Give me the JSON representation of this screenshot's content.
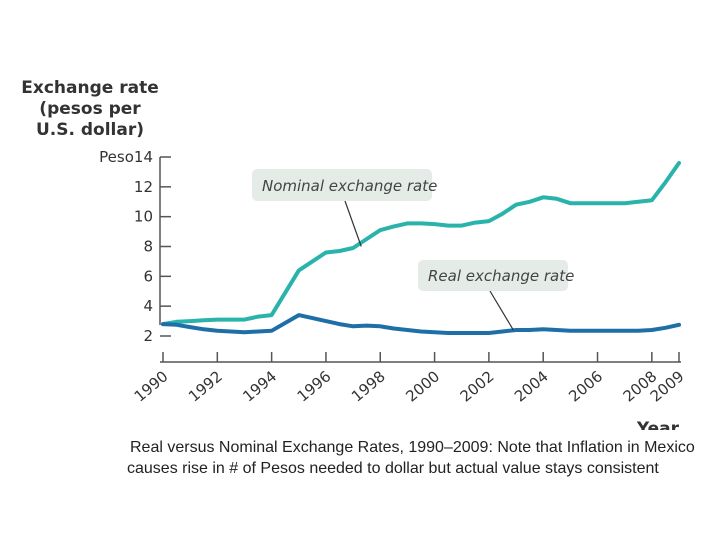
{
  "caption": "Real versus Nominal Exchange Rates, 1990–2009: Note that Inflation in Mexico causes rise in # of Pesos needed to dollar but actual value stays consistent",
  "chart_data": {
    "type": "line",
    "title": "",
    "ylabel_lines": [
      "Exchange rate",
      "(pesos per",
      "U.S. dollar)"
    ],
    "xlabel": "Year",
    "xlim": [
      1990,
      2009
    ],
    "ylim": [
      2,
      14
    ],
    "y_ticks": [
      2,
      4,
      6,
      8,
      10,
      12,
      14
    ],
    "y_tick_labels": [
      "2",
      "4",
      "6",
      "8",
      "10",
      "12",
      "Peso14"
    ],
    "x_ticks": [
      1990,
      1992,
      1994,
      1996,
      1998,
      2000,
      2002,
      2004,
      2006,
      2008,
      2009
    ],
    "x_tick_labels": [
      "1990",
      "1992",
      "1994",
      "1996",
      "1998",
      "2000",
      "2002",
      "2004",
      "2006",
      "2008",
      "2009"
    ],
    "series": [
      {
        "name": "Nominal exchange rate",
        "color": "#2ab3aa",
        "x": [
          1990,
          1990.5,
          1991,
          1991.5,
          1992,
          1992.5,
          1993,
          1993.5,
          1994,
          1995,
          1995.5,
          1996,
          1996.5,
          1997,
          1997.5,
          1998,
          1998.5,
          1999,
          1999.5,
          2000,
          2000.5,
          2001,
          2001.5,
          2002,
          2002.5,
          2003,
          2003.5,
          2004,
          2004.5,
          2005,
          2005.5,
          2006,
          2006.5,
          2007,
          2007.5,
          2008,
          2008.5,
          2009
        ],
        "values": [
          2.8,
          2.95,
          3.0,
          3.05,
          3.1,
          3.1,
          3.1,
          3.3,
          3.4,
          6.4,
          7.0,
          7.6,
          7.7,
          7.9,
          8.5,
          9.1,
          9.35,
          9.55,
          9.55,
          9.5,
          9.4,
          9.4,
          9.6,
          9.7,
          10.2,
          10.8,
          11.0,
          11.3,
          11.2,
          10.9,
          10.9,
          10.9,
          10.9,
          10.9,
          11.0,
          11.1,
          12.3,
          13.6
        ]
      },
      {
        "name": "Real exchange rate",
        "color": "#1e6fa8",
        "x": [
          1990,
          1990.5,
          1991,
          1991.5,
          1992,
          1992.5,
          1993,
          1993.5,
          1994,
          1995,
          1995.5,
          1996,
          1996.5,
          1997,
          1997.5,
          1998,
          1998.5,
          1999,
          1999.5,
          2000,
          2000.5,
          2001,
          2001.5,
          2002,
          2002.5,
          2003,
          2003.5,
          2004,
          2004.5,
          2005,
          2005.5,
          2006,
          2006.5,
          2007,
          2007.5,
          2008,
          2008.5,
          2009
        ],
        "values": [
          2.8,
          2.75,
          2.6,
          2.45,
          2.35,
          2.3,
          2.25,
          2.3,
          2.35,
          3.4,
          3.2,
          3.0,
          2.8,
          2.65,
          2.7,
          2.65,
          2.5,
          2.4,
          2.3,
          2.25,
          2.2,
          2.2,
          2.2,
          2.2,
          2.3,
          2.4,
          2.4,
          2.45,
          2.4,
          2.35,
          2.35,
          2.35,
          2.35,
          2.35,
          2.35,
          2.4,
          2.55,
          2.75
        ]
      }
    ],
    "annotations": [
      {
        "text": "Nominal exchange rate",
        "series": "Nominal exchange rate",
        "point_x": 1997.3,
        "point_y": 8.0
      },
      {
        "text": "Real exchange rate",
        "series": "Real exchange rate",
        "point_x": 2002.9,
        "point_y": 2.4
      }
    ],
    "grid": false,
    "legend": "none"
  }
}
